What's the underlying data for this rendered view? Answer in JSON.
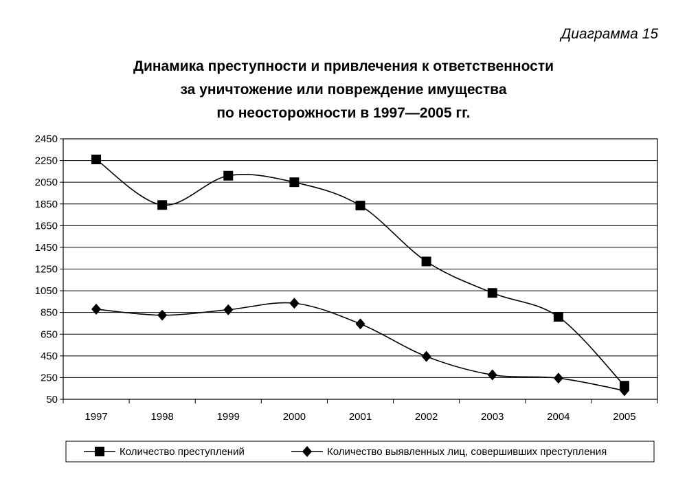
{
  "diagram_label": "Диаграмма 15",
  "chart_data": {
    "type": "line",
    "title_lines": [
      "Динамика преступности и привлечения к ответственности",
      "за уничтожение или повреждение имущества",
      "по неосторожности в 1997—2005 гг."
    ],
    "categories": [
      "1997",
      "1998",
      "1999",
      "2000",
      "2001",
      "2002",
      "2003",
      "2004",
      "2005"
    ],
    "series": [
      {
        "name": "Количество преступлений",
        "marker": "square",
        "values": [
          2260,
          1840,
          2110,
          2050,
          1835,
          1320,
          1030,
          810,
          175
        ]
      },
      {
        "name": "Количество выявленных лиц, совершивших преступления",
        "marker": "diamond",
        "values": [
          880,
          825,
          875,
          935,
          745,
          445,
          275,
          245,
          130
        ]
      }
    ],
    "ylim": [
      50,
      2450
    ],
    "yticks": [
      50,
      250,
      450,
      650,
      850,
      1050,
      1250,
      1450,
      1650,
      1850,
      2050,
      2250,
      2450
    ],
    "grid": true,
    "smooth": true,
    "legend_position": "bottom",
    "xlabel": "",
    "ylabel": ""
  }
}
